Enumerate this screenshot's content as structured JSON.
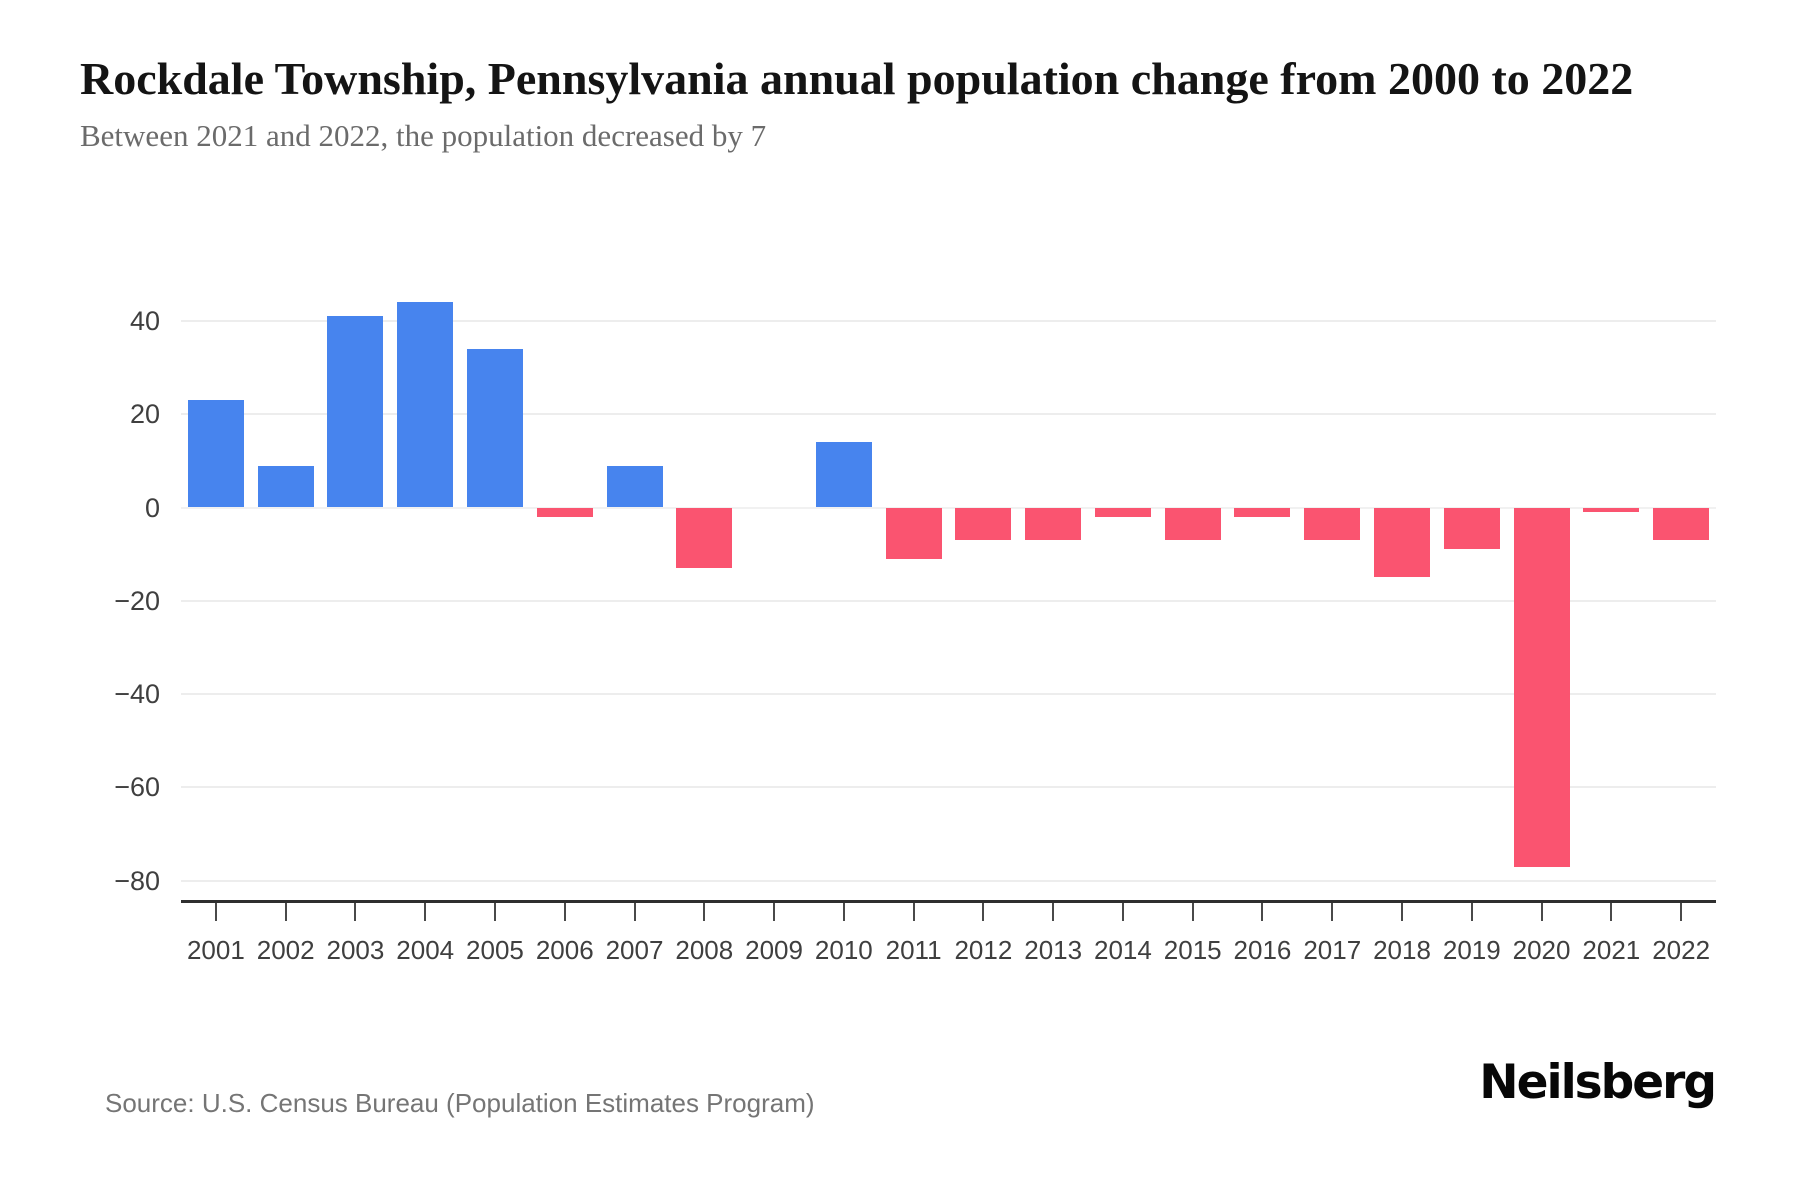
{
  "page": {
    "title": "Rockdale Township, Pennsylvania annual population change from 2000 to 2022",
    "subtitle": "Between 2021 and 2022, the population decreased by 7",
    "source": "Source: U.S. Census Bureau (Population Estimates Program)",
    "brand": "Neilsberg"
  },
  "chart_data": {
    "type": "bar",
    "title": "Rockdale Township, Pennsylvania annual population change from 2000 to 2022",
    "subtitle": "Between 2021 and 2022, the population decreased by 7",
    "categories": [
      "2001",
      "2002",
      "2003",
      "2004",
      "2005",
      "2006",
      "2007",
      "2008",
      "2009",
      "2010",
      "2011",
      "2012",
      "2013",
      "2014",
      "2015",
      "2016",
      "2017",
      "2018",
      "2019",
      "2020",
      "2021",
      "2022"
    ],
    "values": [
      23,
      9,
      41,
      44,
      34,
      -2,
      9,
      -13,
      0,
      14,
      -11,
      -7,
      -7,
      -2,
      -7,
      -2,
      -7,
      -15,
      -9,
      -77,
      -1,
      -7
    ],
    "xlabel": "",
    "ylabel": "",
    "ylim": [
      -80,
      45
    ],
    "yticks": [
      40,
      20,
      0,
      -20,
      -40,
      -60,
      -80
    ],
    "grid": true,
    "legend_position": "none",
    "colors": {
      "positive_bar": "#4784ee",
      "negative_bar": "#fa5470",
      "gridline": "#ededed",
      "axis": "#2f2f2f",
      "tick_label": "#3f3f3f"
    },
    "source": "U.S. Census Bureau (Population Estimates Program)"
  }
}
